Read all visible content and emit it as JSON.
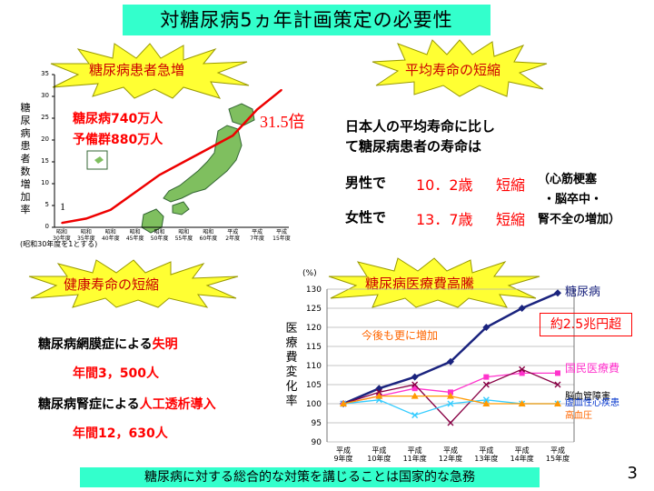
{
  "title": "対糖尿病5ヵ年計画策定の必要性",
  "bursts": {
    "patients": "糖尿病患者急増",
    "life": "平均寿命の短縮",
    "health": "健康寿命の短縮",
    "cost": "糖尿病医療費高騰"
  },
  "patients_panel": {
    "ylabel": "糖尿病患者数増加率",
    "stat1": "糖尿病740万人",
    "stat2": "予備群880万人",
    "multiplier": "31.5倍",
    "start_value": "1",
    "note": "(昭和30年度を1とする)",
    "xticks": [
      [
        "昭和",
        "30年度"
      ],
      [
        "昭和",
        "35年度"
      ],
      [
        "昭和",
        "40年度"
      ],
      [
        "昭和",
        "45年度"
      ],
      [
        "昭和",
        "50年度"
      ],
      [
        "昭和",
        "55年度"
      ],
      [
        "昭和",
        "60年度"
      ],
      [
        "平成",
        "2年度"
      ],
      [
        "平成",
        "7年度"
      ],
      [
        "平成",
        "15年度"
      ]
    ],
    "yticks": [
      "35",
      "30",
      "25",
      "20",
      "15",
      "10",
      "5",
      "0"
    ]
  },
  "life_panel": {
    "line1": "日本人の平均寿命に比し",
    "line2": "て糖尿病患者の寿命は",
    "male_label": "男性で",
    "male_value": "10．2歳",
    "male_short": "短縮",
    "female_label": "女性で",
    "female_value": "13．7歳",
    "female_short": "短縮",
    "cause1": "（心筋梗塞",
    "cause2": "・脳卒中・",
    "cause3": "腎不全の増加）"
  },
  "health_panel": {
    "item1_prefix": "糖尿病網膜症による",
    "item1_red": "失明",
    "item1_count": "年間3，500人",
    "item2_prefix": "糖尿病腎症による",
    "item2_red": "人工透析導入",
    "item2_count": "年間12，630人"
  },
  "cost_panel": {
    "unit": "(%)",
    "ylabel": "医療費変化率",
    "note_increase": "今後も更に増加",
    "box_label": "約2.5兆円超"
  },
  "footer": "糖尿病に対する総合的な対策を講じることは国家的な急務",
  "page_number": "3",
  "colors": {
    "title_bg": "#33ffcc",
    "burst": "#ffff33",
    "red": "#ff0000",
    "navy": "#1a237e",
    "magenta": "#ff33cc"
  },
  "chart_data": [
    {
      "type": "line",
      "title": "",
      "xlabel": "",
      "ylabel": "糖尿病患者数増加率",
      "categories": [
        "昭和30年度",
        "昭和35年度",
        "昭和40年度",
        "昭和45年度",
        "昭和50年度",
        "昭和55年度",
        "昭和60年度",
        "平成2年度",
        "平成7年度",
        "平成15年度"
      ],
      "series": [
        {
          "name": "",
          "values": [
            1,
            2,
            4,
            8,
            12,
            15,
            18,
            21,
            27,
            31.5
          ]
        }
      ],
      "ylim": [
        0,
        35
      ],
      "grid": false
    },
    {
      "type": "line",
      "title": "",
      "xlabel": "",
      "ylabel": "医療費変化率",
      "categories": [
        "平成9年度",
        "平成10年度",
        "平成11年度",
        "平成12年度",
        "平成13年度",
        "平成14年度",
        "平成15年度"
      ],
      "yticks": [
        90,
        95,
        100,
        105,
        110,
        115,
        120,
        125,
        130
      ],
      "ylim": [
        90,
        130
      ],
      "grid": true,
      "series": [
        {
          "name": "糖尿病",
          "color": "#1a237e",
          "marker": "diamond",
          "values": [
            100,
            104,
            107,
            111,
            120,
            125,
            129
          ]
        },
        {
          "name": "国民医療費",
          "color": "#ff33cc",
          "marker": "square",
          "values": [
            100,
            102,
            104,
            103,
            107,
            108,
            108
          ]
        },
        {
          "name": "脳血管障害",
          "color": "#880044",
          "marker": "x",
          "values": [
            100,
            103,
            105,
            95,
            105,
            109,
            105
          ]
        },
        {
          "name": "虚血性心疾患",
          "color": "#33ccff",
          "marker": "x",
          "values": [
            100,
            101,
            97,
            100,
            101,
            100,
            100
          ]
        },
        {
          "name": "高血圧",
          "color": "#ff9900",
          "marker": "triangle",
          "values": [
            100,
            102,
            102,
            102,
            100,
            100,
            100
          ]
        }
      ]
    }
  ]
}
